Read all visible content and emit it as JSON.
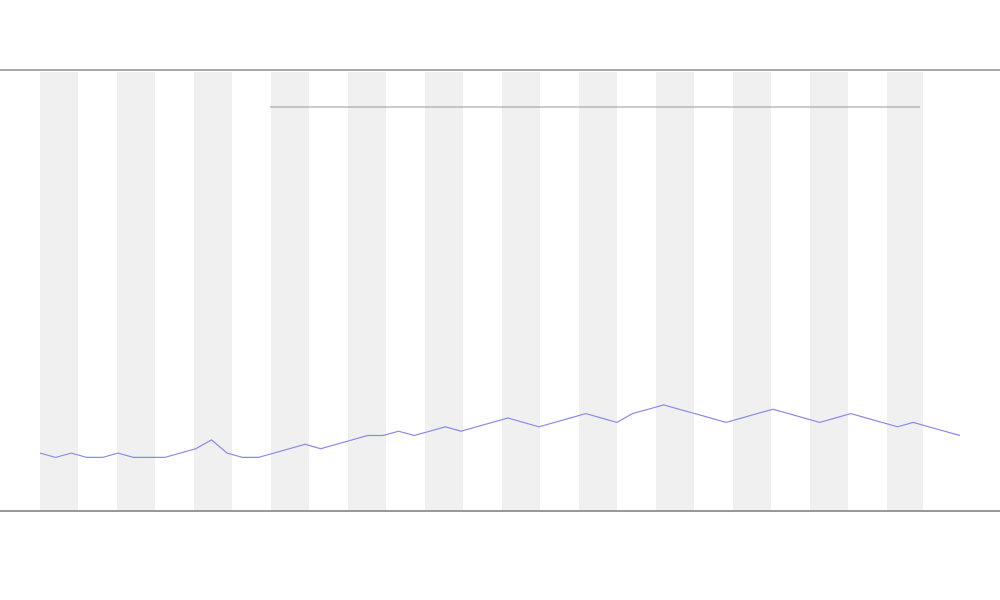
{
  "chart_data": {
    "type": "line",
    "values": [
      13,
      12,
      13,
      12,
      12,
      13,
      12,
      12,
      12,
      13,
      14,
      16,
      13,
      12,
      12,
      13,
      14,
      15,
      14,
      15,
      16,
      17,
      17,
      18,
      17,
      18,
      19,
      18,
      19,
      20,
      21,
      20,
      19,
      20,
      21,
      22,
      21,
      20,
      22,
      23,
      24,
      23,
      22,
      21,
      20,
      21,
      22,
      23,
      22,
      21,
      20,
      21,
      22,
      21,
      20,
      19,
      20,
      19,
      18,
      17
    ],
    "color": "#8a8ae6",
    "ylim": [
      0,
      100
    ]
  }
}
